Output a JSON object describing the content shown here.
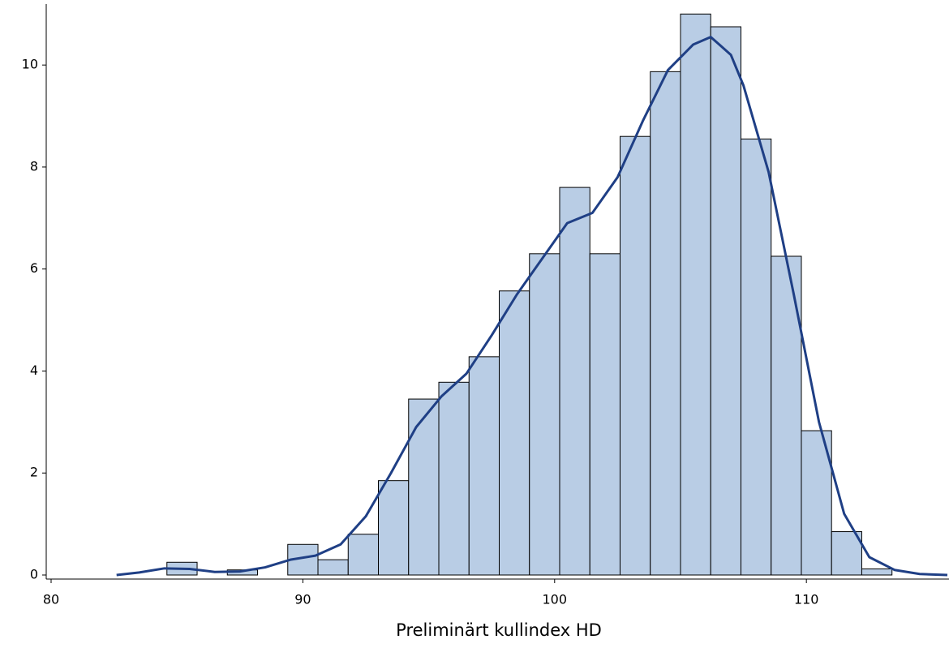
{
  "chart_data": {
    "type": "histogram",
    "x_label": "Preliminärt kullindex HD",
    "bins": [
      84.6,
      85.8,
      87.0,
      88.2,
      89.4,
      90.6,
      91.8,
      93.0,
      94.2,
      95.4,
      96.6,
      97.8,
      99.0,
      100.2,
      101.4,
      102.6,
      103.8,
      105.0,
      106.2,
      107.4,
      108.6,
      109.8,
      111.0,
      112.2,
      113.4
    ],
    "values": [
      0.25,
      0,
      0.1,
      0,
      0.6,
      0.3,
      0.8,
      1.85,
      3.45,
      3.78,
      4.28,
      5.57,
      6.3,
      7.6,
      6.3,
      8.6,
      9.87,
      11.0,
      10.75,
      8.55,
      6.25,
      2.83,
      0.85,
      0.12
    ],
    "color": "#b9cde5",
    "curve": {
      "color": "#1f3f85",
      "x": [
        82.6,
        83.5,
        84.5,
        85.5,
        86.5,
        87.5,
        88.5,
        89.5,
        90.5,
        91.5,
        92.5,
        93.5,
        94.5,
        95.5,
        96.5,
        97.5,
        98.5,
        99.5,
        100.5,
        101.5,
        102.5,
        103.5,
        104.5,
        105.5,
        106.2,
        107.0,
        107.5,
        108.5,
        109.5,
        110.5,
        111.5,
        112.5,
        113.5,
        114.5,
        115.6
      ],
      "values": [
        0,
        0.05,
        0.13,
        0.12,
        0.06,
        0.07,
        0.15,
        0.3,
        0.38,
        0.6,
        1.15,
        2.0,
        2.9,
        3.5,
        3.95,
        4.7,
        5.5,
        6.2,
        6.9,
        7.1,
        7.8,
        8.9,
        9.9,
        10.4,
        10.55,
        10.2,
        9.6,
        7.9,
        5.5,
        3.0,
        1.2,
        0.35,
        0.1,
        0.02,
        0
      ]
    },
    "xlim": [
      80,
      115.6
    ],
    "xticks": [
      80,
      90,
      100,
      110
    ],
    "ylim": [
      0,
      11.1
    ],
    "yticks": [
      0,
      2,
      4,
      6,
      8,
      10
    ]
  }
}
